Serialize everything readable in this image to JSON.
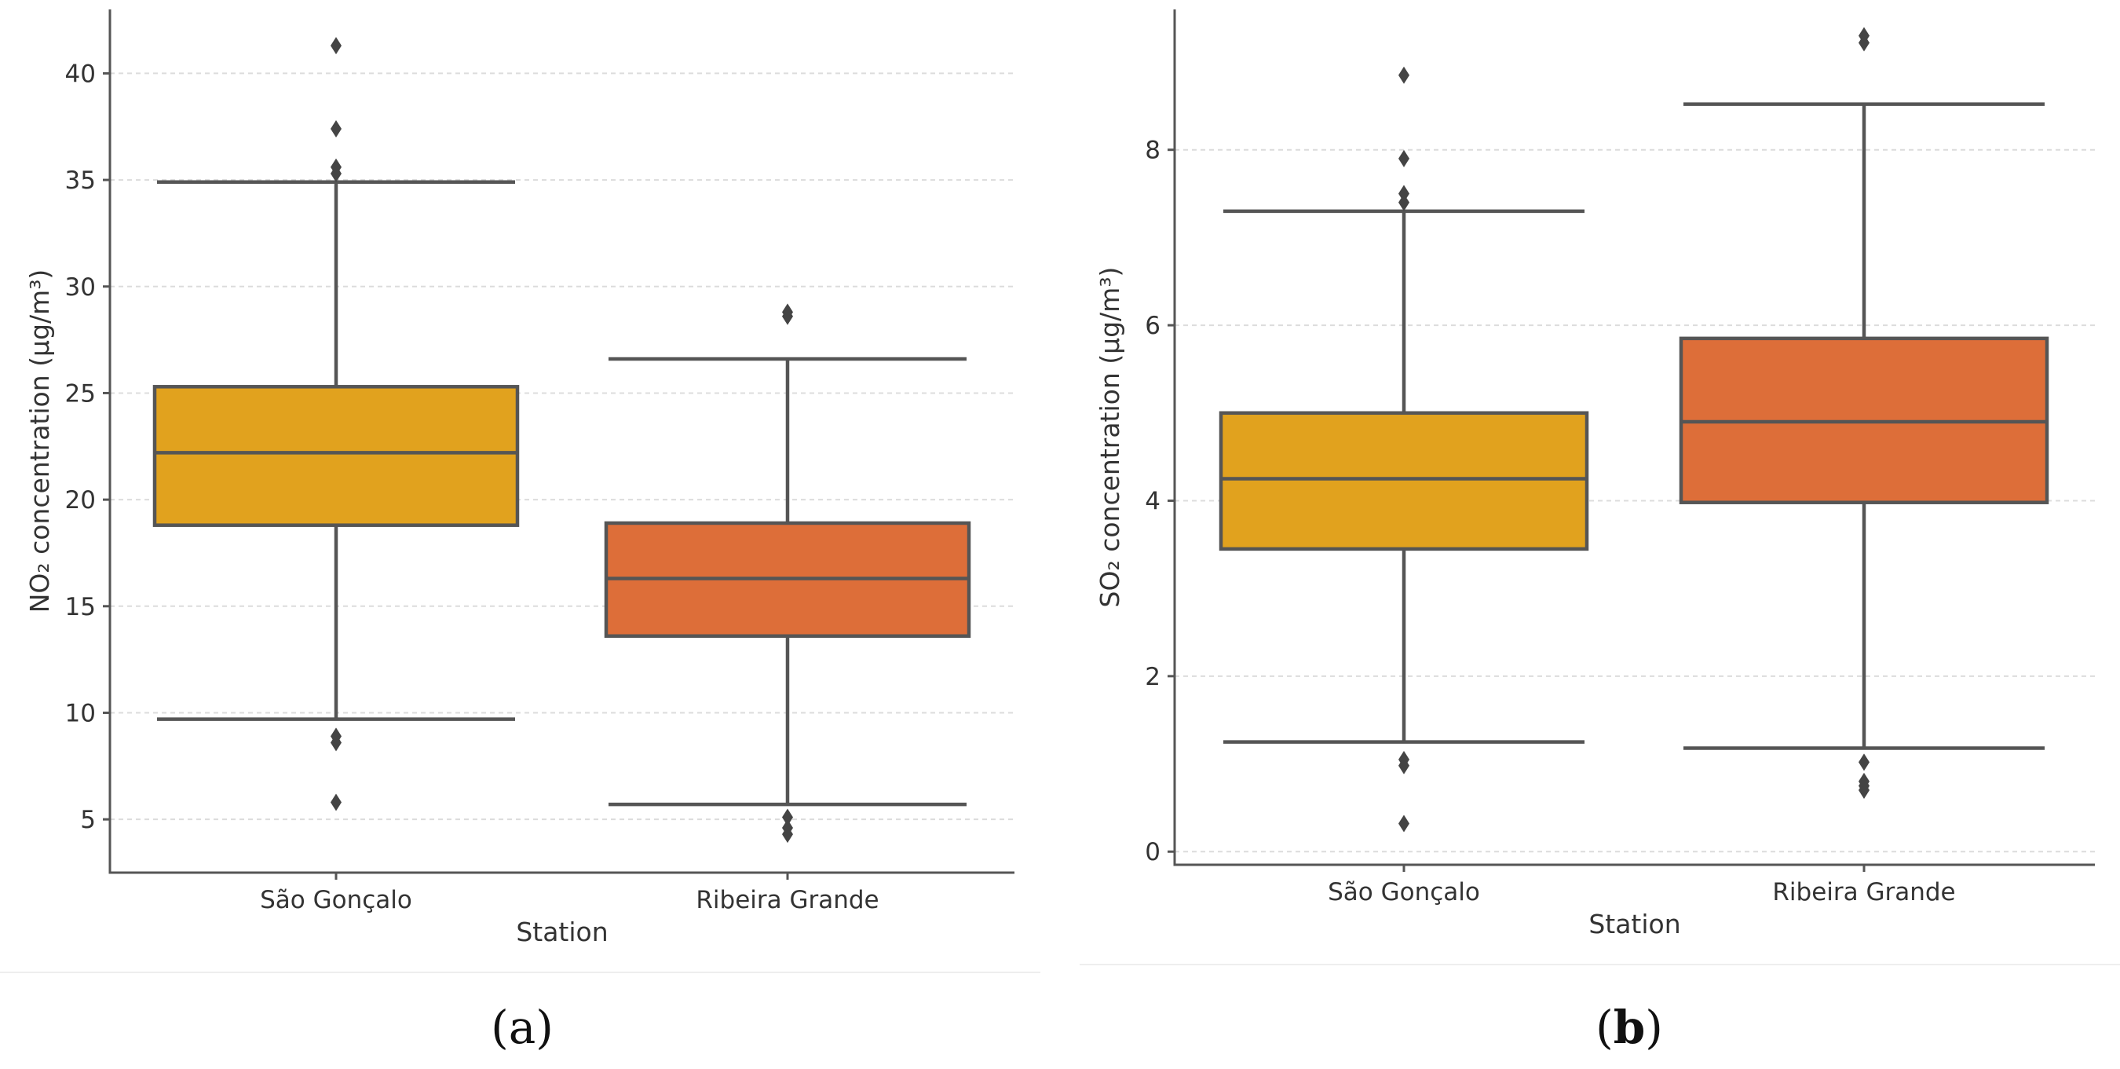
{
  "panels": [
    {
      "label_open": "(",
      "label_letter": "a",
      "label_close": ")"
    },
    {
      "label_open": "(",
      "label_letter": "b",
      "label_close": ")"
    }
  ],
  "chart_data": [
    {
      "type": "box",
      "xlabel": "Station",
      "ylabel": "NO₂ concentration (μg/m³)",
      "ylim": [
        2.5,
        43
      ],
      "yticks": [
        5,
        10,
        15,
        20,
        25,
        30,
        35,
        40
      ],
      "grid": true,
      "categories": [
        "São Gonçalo",
        "Ribeira Grande"
      ],
      "boxes": [
        {
          "category": "São Gonçalo",
          "color": "#E1A21E",
          "whisker_low": 9.7,
          "q1": 18.8,
          "median": 22.2,
          "q3": 25.3,
          "whisker_high": 34.9,
          "outliers": [
            41.3,
            37.4,
            35.6,
            35.3,
            8.9,
            8.6,
            5.8
          ]
        },
        {
          "category": "Ribeira Grande",
          "color": "#DD6E39",
          "whisker_low": 5.7,
          "q1": 13.6,
          "median": 16.3,
          "q3": 18.9,
          "whisker_high": 26.6,
          "outliers": [
            28.8,
            28.6,
            5.1,
            4.6,
            4.3
          ]
        }
      ]
    },
    {
      "type": "box",
      "xlabel": "Station",
      "ylabel": "SO₂ concentration (μg/m³)",
      "ylim": [
        -0.15,
        9.6
      ],
      "yticks": [
        0,
        2,
        4,
        6,
        8
      ],
      "grid": true,
      "categories": [
        "São Gonçalo",
        "Ribeira Grande"
      ],
      "boxes": [
        {
          "category": "São Gonçalo",
          "color": "#E1A21E",
          "whisker_low": 1.25,
          "q1": 3.45,
          "median": 4.25,
          "q3": 5.0,
          "whisker_high": 7.3,
          "outliers": [
            8.85,
            7.9,
            7.5,
            7.4,
            1.05,
            0.98,
            0.32
          ]
        },
        {
          "category": "Ribeira Grande",
          "color": "#DD6E39",
          "whisker_low": 1.18,
          "q1": 3.98,
          "median": 4.9,
          "q3": 5.85,
          "whisker_high": 8.52,
          "outliers": [
            9.3,
            9.22,
            1.02,
            0.8,
            0.75,
            0.7
          ]
        }
      ]
    }
  ]
}
